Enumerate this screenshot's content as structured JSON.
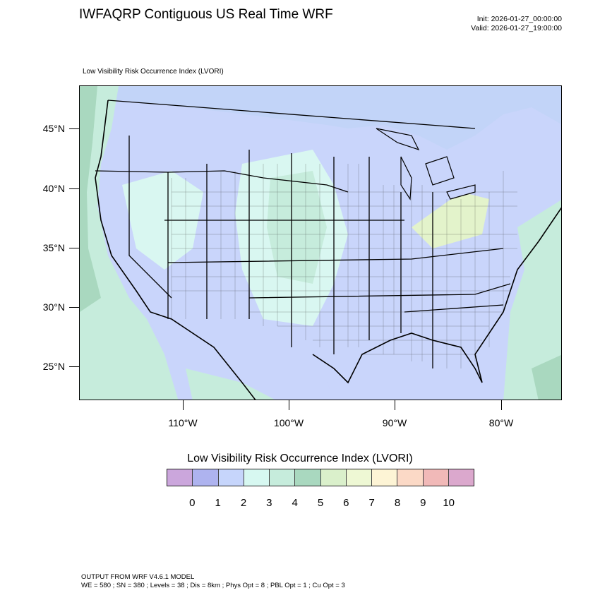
{
  "header": {
    "title": "IWFAQRP Contiguous US Real Time WRF",
    "init": "Init: 2026-01-27_00:00:00",
    "valid": "Valid: 2026-01-27_19:00:00",
    "subtitle": "Low Visibility Risk Occurrence Index   (LVORI)"
  },
  "map": {
    "lat_labels": [
      "45°N",
      "40°N",
      "35°N",
      "30°N",
      "25°N"
    ],
    "lon_labels": [
      "110°W",
      "100°W",
      "90°W",
      "80°W"
    ],
    "colors": {
      "background": "#c9d5fb",
      "ocean_green": "#c6ecdc",
      "light_cyan": "#d9f7f1",
      "terrain_green": "#a9d8bf",
      "yellow_green": "#e3f3cb",
      "pale_yellow": "#fbf5cf"
    }
  },
  "legend": {
    "title": "Low Visibility Risk Occurrence Index  (LVORI)",
    "colors": [
      "#cba6dc",
      "#aeb3ef",
      "#c6d5fb",
      "#d7f8f1",
      "#c6ecdc",
      "#a9d8bf",
      "#daf0cb",
      "#eef8d4",
      "#fdf4d5",
      "#fbd9c6",
      "#f1b9b8",
      "#dba8cd"
    ],
    "labels": [
      "0",
      "1",
      "2",
      "3",
      "4",
      "5",
      "6",
      "7",
      "8",
      "9",
      "10"
    ]
  },
  "footer": {
    "line1": "OUTPUT FROM WRF V4.6.1 MODEL",
    "line2": "WE = 580 ; SN = 380 ; Levels = 38 ; Dis = 8km ; Phys Opt = 8 ; PBL Opt = 1 ; Cu Opt = 3"
  }
}
